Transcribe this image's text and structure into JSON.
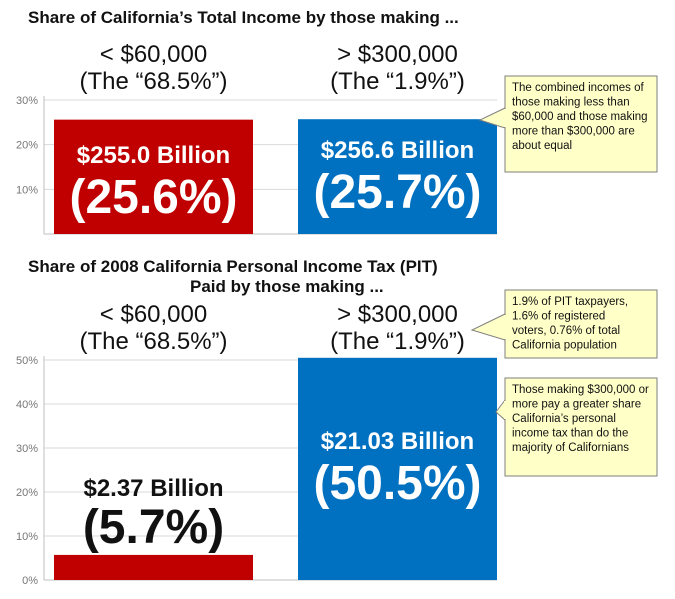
{
  "colors": {
    "low": "#c00000",
    "high": "#0070c0",
    "grid": "#d9d9d9",
    "axis": "#bfbfbf",
    "callout_fill": "#ffffc8",
    "callout_stroke": "#7f7f7f"
  },
  "chart_data": [
    {
      "type": "bar",
      "title": "Share of California’s Total Income by those making ...",
      "categories": [
        "< $60,000\n(The “68.5%”)",
        "> $300,000\n(The “1.9%”)"
      ],
      "values": [
        25.6,
        25.7
      ],
      "amount_labels": [
        "$255.0 Billion",
        "$256.6 Billion"
      ],
      "pct_labels": [
        "(25.6%)",
        "(25.7%)"
      ],
      "yticks": [
        "30%",
        "20%",
        "10%"
      ],
      "ylim": [
        0,
        30
      ],
      "grid": true,
      "annotations": [
        "The combined incomes of those making less than $60,000 and those making more than $300,000 are about equal"
      ]
    },
    {
      "type": "bar",
      "title": "Share of 2008 California Personal Income Tax (PIT) Paid by those making ...",
      "categories": [
        "< $60,000\n(The “68.5%”)",
        "> $300,000\n(The “1.9%”)"
      ],
      "values": [
        5.7,
        50.5
      ],
      "amount_labels": [
        "$2.37 Billion",
        "$21.03 Billion"
      ],
      "pct_labels": [
        "(5.7%)",
        "(50.5%)"
      ],
      "yticks": [
        "50%",
        "40%",
        "30%",
        "20%",
        "10%",
        "0%"
      ],
      "ylim": [
        0,
        50
      ],
      "grid": true,
      "annotations": [
        "1.9% of PIT taxpayers, 1.6% of registered voters, 0.76% of total California population",
        "Those making $300,000 or more pay a greater share California’s personal income tax than do the majority of Californians"
      ]
    }
  ]
}
